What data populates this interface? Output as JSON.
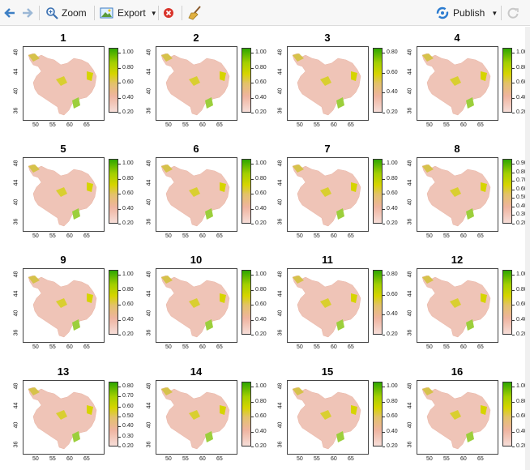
{
  "toolbar": {
    "zoom_label": "Zoom",
    "export_label": "Export",
    "publish_label": "Publish"
  },
  "icons": {
    "back": "left-arrow-icon",
    "forward": "right-arrow-icon",
    "zoom": "magnifier-icon",
    "export": "image-export-icon",
    "remove": "remove-plot-icon",
    "clear": "broom-icon",
    "publish": "publish-icon",
    "refresh": "refresh-icon"
  },
  "colors": {
    "legend_low": "#f6ddd8",
    "legend_mid": "#d6d400",
    "legend_high": "#2ea600",
    "map_fill": "#efc4b7"
  },
  "plots": [
    {
      "title": "1",
      "legend": [
        "1.00",
        "0.80",
        "0.60",
        "0.40",
        "0.20"
      ]
    },
    {
      "title": "2",
      "legend": [
        "1.00",
        "0.80",
        "0.60",
        "0.40",
        "0.20"
      ]
    },
    {
      "title": "3",
      "legend": [
        "0.80",
        "0.60",
        "0.40",
        "0.20"
      ]
    },
    {
      "title": "4",
      "legend": [
        "1.00",
        "0.80",
        "0.60",
        "0.40",
        "0.20"
      ]
    },
    {
      "title": "5",
      "legend": [
        "1.00",
        "0.80",
        "0.60",
        "0.40",
        "0.20"
      ]
    },
    {
      "title": "6",
      "legend": [
        "1.00",
        "0.80",
        "0.60",
        "0.40",
        "0.20"
      ]
    },
    {
      "title": "7",
      "legend": [
        "1.00",
        "0.80",
        "0.60",
        "0.40",
        "0.20"
      ]
    },
    {
      "title": "8",
      "legend": [
        "0.90",
        "0.80",
        "0.70",
        "0.60",
        "0.50",
        "0.40",
        "0.30",
        "0.20"
      ]
    },
    {
      "title": "9",
      "legend": [
        "1.00",
        "0.80",
        "0.60",
        "0.40",
        "0.20"
      ]
    },
    {
      "title": "10",
      "legend": [
        "1.00",
        "0.80",
        "0.60",
        "0.40",
        "0.20"
      ]
    },
    {
      "title": "11",
      "legend": [
        "0.80",
        "0.60",
        "0.40",
        "0.20"
      ]
    },
    {
      "title": "12",
      "legend": [
        "1.00",
        "0.80",
        "0.60",
        "0.40",
        "0.20"
      ]
    },
    {
      "title": "13",
      "legend": [
        "0.80",
        "0.70",
        "0.60",
        "0.50",
        "0.40",
        "0.30",
        "0.20"
      ]
    },
    {
      "title": "14",
      "legend": [
        "1.00",
        "0.80",
        "0.60",
        "0.40",
        "0.20"
      ]
    },
    {
      "title": "15",
      "legend": [
        "1.00",
        "0.80",
        "0.60",
        "0.40",
        "0.20"
      ]
    },
    {
      "title": "16",
      "legend": [
        "1.00",
        "0.80",
        "0.60",
        "0.40",
        "0.20"
      ]
    }
  ],
  "axes": {
    "x_ticks": [
      "50",
      "55",
      "60",
      "65"
    ],
    "y_ticks": [
      "36",
      "40",
      "44",
      "48"
    ]
  }
}
